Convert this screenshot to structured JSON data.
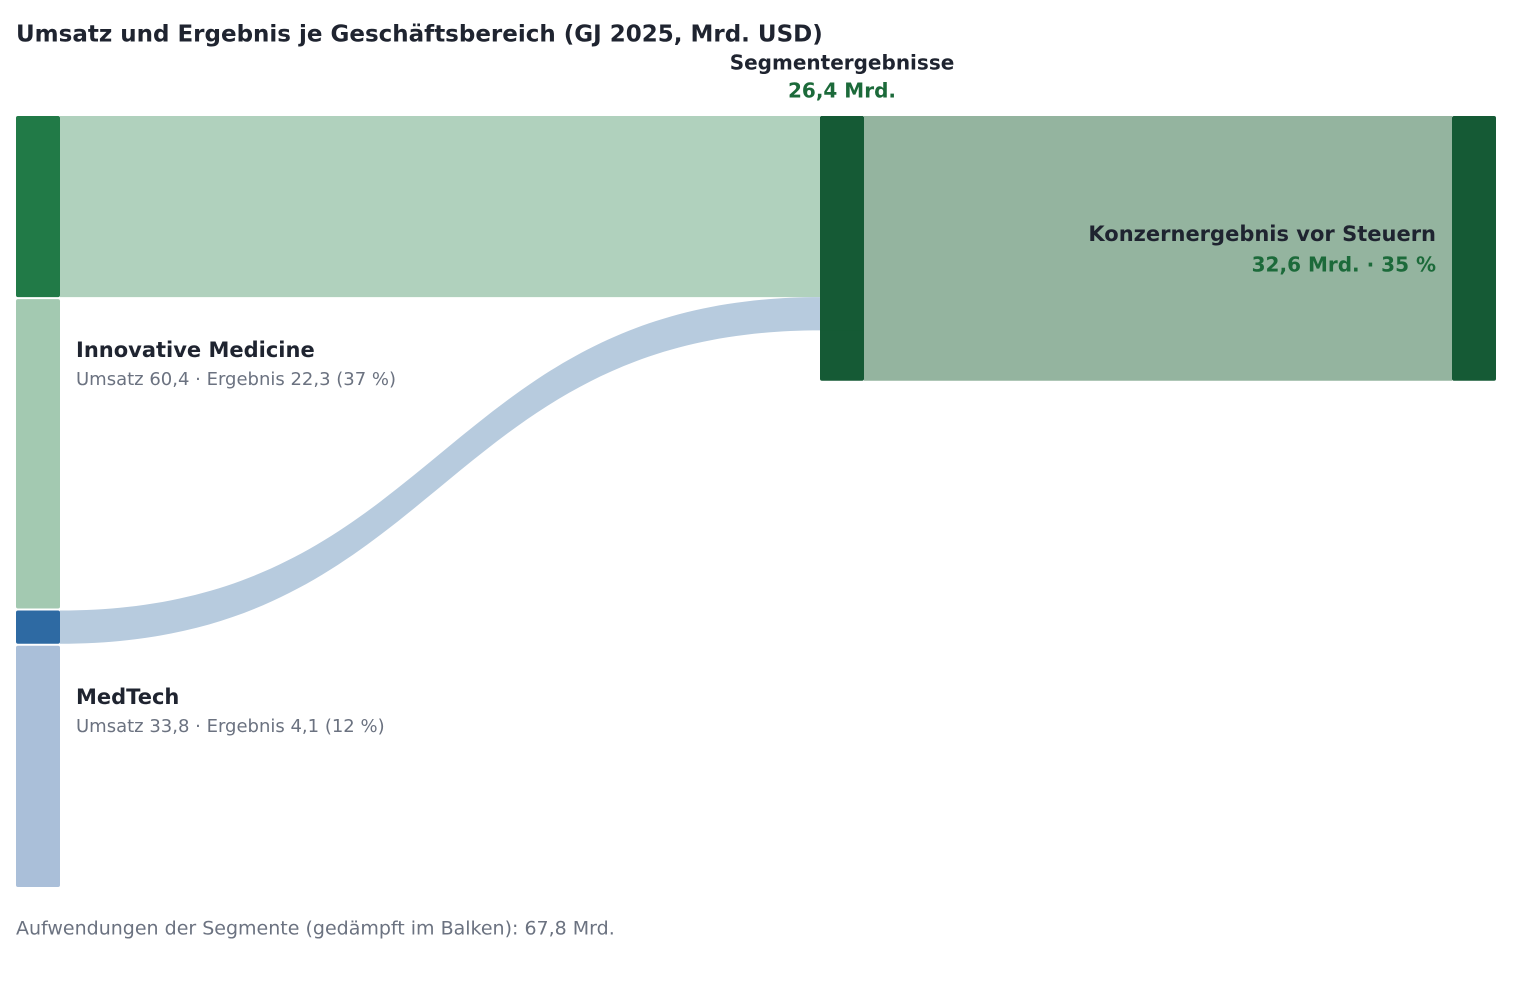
{
  "chart_data": {
    "type": "sankey",
    "title": "Umsatz und Ergebnis je Geschäftsbereich (GJ 2025, Mrd. USD)",
    "segments": [
      {
        "name": "Innovative Medicine",
        "revenue": 60.4,
        "profit": 22.3,
        "label": "Umsatz 60,4 · Ergebnis 22,3 (37 %)",
        "color_profit": "#217a47",
        "color_rest": "#a3c9b1",
        "color_flow": "#b0d1bd"
      },
      {
        "name": "MedTech",
        "revenue": 33.8,
        "profit": 4.1,
        "label": "Umsatz 33,8 · Ergebnis 4,1 (12 %)",
        "color_profit": "#2e6aa3",
        "color_rest": "#aabfd9",
        "color_flow": "#b7cbde"
      }
    ],
    "segment_total": {
      "name": "Segmentergebnisse",
      "value": 26.4,
      "label": "26,4 Mrd.",
      "color": "#155a35"
    },
    "group": {
      "name": "Konzernergebnis vor Steuern",
      "value": 32.6,
      "label": "32,6 Mrd. · 35 %",
      "color": "#155a35",
      "band_color": "#94b49f"
    },
    "footnote": "Aufwendungen der Segmente (gedämpft im Balken): 67,8 Mrd."
  }
}
